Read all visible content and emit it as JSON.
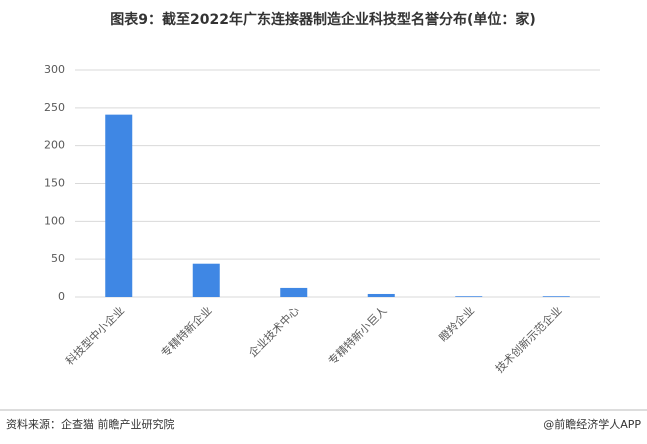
{
  "chart_data": {
    "type": "bar",
    "title": "图表9：截至2022年广东连接器制造企业科技型名誉分布(单位：家)",
    "categories": [
      "科技型中小企业",
      "专精特新企业",
      "企业技术中心",
      "专精特新小巨人",
      "瞪羚企业",
      "技术创新示范企业"
    ],
    "values": [
      241,
      44,
      12,
      4,
      1,
      1
    ],
    "color": "#3f87e4",
    "ylim": [
      0,
      300
    ],
    "yticks": [
      0,
      50,
      100,
      150,
      200,
      250,
      300
    ],
    "grid": true,
    "source": "资料来源：企查猫 前瞻产业研究院",
    "credit": "@前瞻经济学人APP"
  }
}
